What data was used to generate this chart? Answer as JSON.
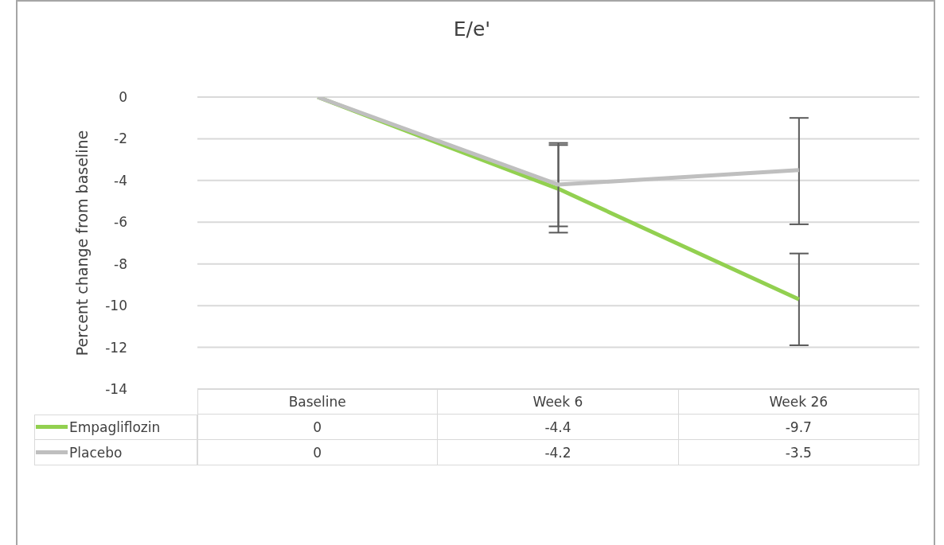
{
  "chart_data": {
    "type": "line",
    "title": "E/e'",
    "ylabel": "Percent change from baseline",
    "categories": [
      "Baseline",
      "Week 6",
      "Week 26"
    ],
    "series": [
      {
        "name": "Empagliflozin",
        "color": "#92d050",
        "values": [
          0,
          -4.4,
          -9.7
        ],
        "errors": [
          null,
          [
            -6.5,
            -2.3
          ],
          [
            -11.9,
            -7.5
          ]
        ]
      },
      {
        "name": "Placebo",
        "color": "#bfbfbf",
        "values": [
          0,
          -4.2,
          -3.5
        ],
        "errors": [
          null,
          [
            -6.2,
            -2.2
          ],
          [
            -6.1,
            -1.0
          ]
        ]
      }
    ],
    "ylim": [
      -14,
      0
    ],
    "yticks": [
      0,
      -2,
      -4,
      -6,
      -8,
      -10,
      -12,
      -14
    ],
    "grid": "y",
    "legend": "bottom left",
    "data_labels": true
  }
}
